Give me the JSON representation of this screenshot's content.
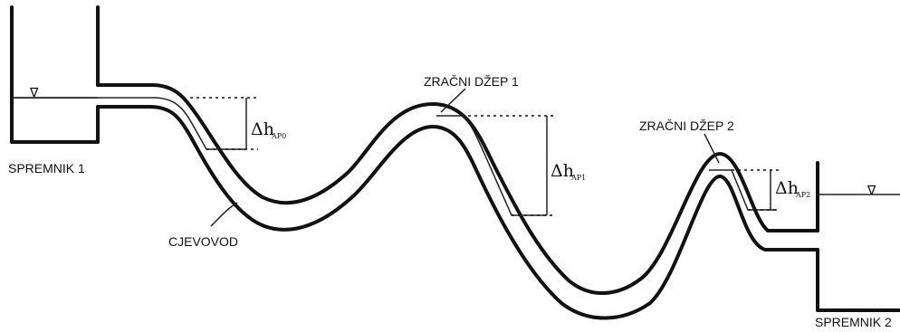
{
  "labels": {
    "tank1": "SPREMNIK 1",
    "tank2": "SPREMNIK 2",
    "pipe": "CJEVOVOD",
    "pocket1": "ZRAČNI DŽEP 1",
    "pocket2": "ZRAČNI DŽEP 2"
  },
  "deltas": [
    {
      "symbol": "Δh",
      "sub": "AP0"
    },
    {
      "symbol": "Δh",
      "sub": "AP1"
    },
    {
      "symbol": "Δh",
      "sub": "AP2"
    }
  ],
  "water_symbol": "∇"
}
